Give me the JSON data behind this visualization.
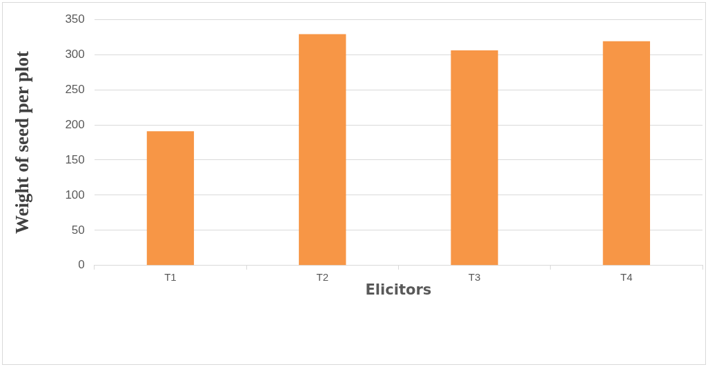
{
  "chart_data": {
    "type": "bar",
    "xlabel": "Elicitors",
    "ylabel": "Weight of seed per plot",
    "categories": [
      "T1",
      "T2",
      "T3",
      "T4"
    ],
    "values": [
      191,
      329,
      306,
      319
    ],
    "color": "#f79646",
    "ylim": [
      0,
      350
    ],
    "yticks": [
      0,
      50,
      100,
      150,
      200,
      250,
      300,
      350
    ],
    "grid": "y"
  }
}
